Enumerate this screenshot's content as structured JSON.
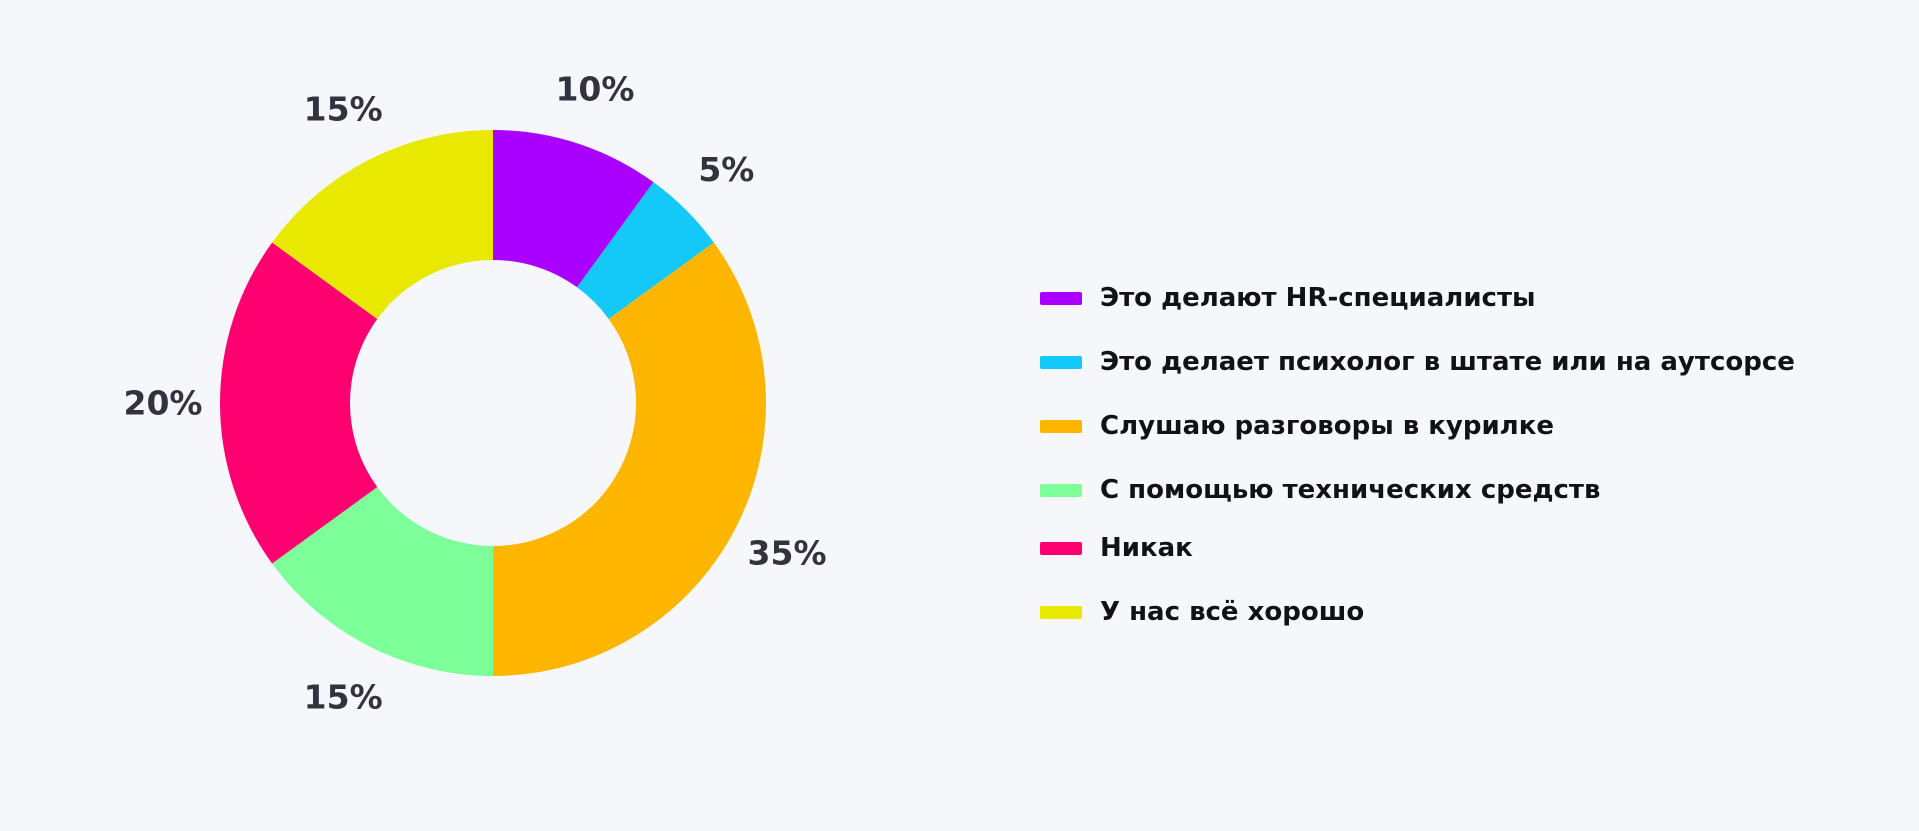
{
  "chart_data": {
    "type": "pie",
    "variant": "donut",
    "categories": [
      "Это делают HR-специалисты",
      "Это делает психолог в штате или на аутсорсе",
      "Слушаю разговоры в курилке",
      "С помощью технических средств",
      "Никак",
      "У нас всё хорошо"
    ],
    "values": [
      10,
      5,
      35,
      15,
      20,
      15
    ],
    "value_labels": [
      "10%",
      "5%",
      "35%",
      "15%",
      "20%",
      "15%"
    ],
    "colors": [
      "#aa00ff",
      "#14c8f7",
      "#ffb600",
      "#7dff9a",
      "#ff0070",
      "#e8e800"
    ],
    "legend_position": "right",
    "title": ""
  }
}
